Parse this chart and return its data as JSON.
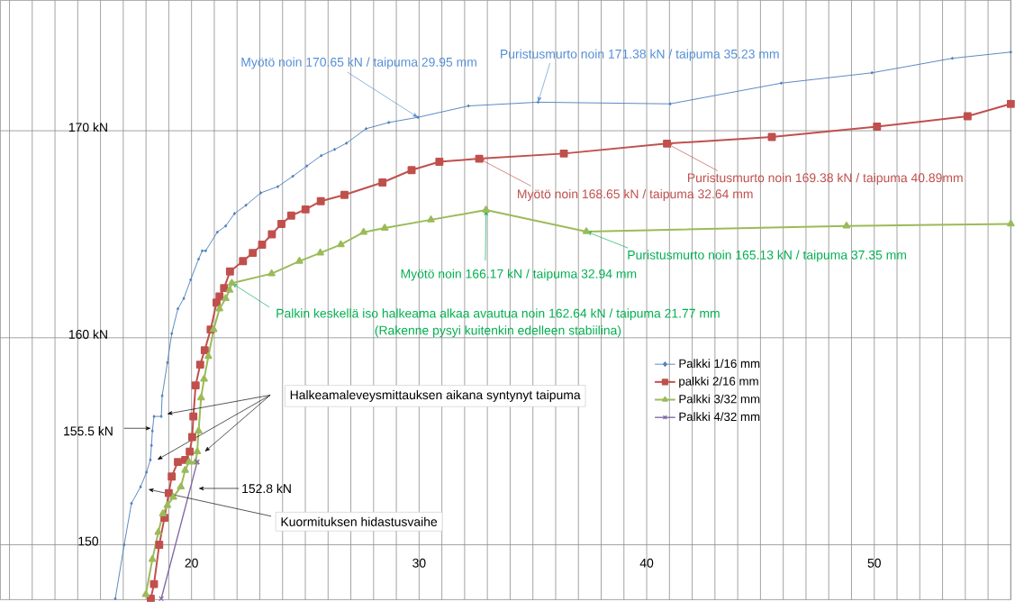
{
  "chart_data": {
    "type": "line",
    "xlim": [
      11.6,
      56.0
    ],
    "ylim": [
      147.35,
      176.3
    ],
    "xticks": [
      {
        "value": 12,
        "label": null
      },
      {
        "value": 13,
        "label": null
      },
      {
        "value": 14,
        "label": null
      },
      {
        "value": 15,
        "label": null
      },
      {
        "value": 16,
        "label": null
      },
      {
        "value": 17,
        "label": null
      },
      {
        "value": 18,
        "label": null
      },
      {
        "value": 19,
        "label": null
      },
      20,
      {
        "value": 21,
        "label": null
      },
      {
        "value": 22,
        "label": null
      },
      {
        "value": 23,
        "label": null
      },
      {
        "value": 24,
        "label": null
      },
      {
        "value": 25,
        "label": null
      },
      {
        "value": 26,
        "label": null
      },
      {
        "value": 27,
        "label": null
      },
      {
        "value": 28,
        "label": null
      },
      {
        "value": 29,
        "label": null
      },
      30,
      {
        "value": 31,
        "label": null
      },
      {
        "value": 32,
        "label": null
      },
      {
        "value": 33,
        "label": null
      },
      {
        "value": 34,
        "label": null
      },
      {
        "value": 35,
        "label": null
      },
      {
        "value": 36,
        "label": null
      },
      {
        "value": 37,
        "label": null
      },
      {
        "value": 38,
        "label": null
      },
      {
        "value": 39,
        "label": null
      },
      40,
      {
        "value": 41,
        "label": null
      },
      {
        "value": 42,
        "label": null
      },
      {
        "value": 43,
        "label": null
      },
      {
        "value": 44,
        "label": null
      },
      {
        "value": 45,
        "label": null
      },
      {
        "value": 46,
        "label": null
      },
      {
        "value": 47,
        "label": null
      },
      {
        "value": 48,
        "label": null
      },
      {
        "value": 49,
        "label": null
      },
      50,
      {
        "value": 51,
        "label": null
      },
      {
        "value": 52,
        "label": null
      },
      {
        "value": 53,
        "label": null
      },
      {
        "value": 54,
        "label": null
      },
      {
        "value": 55,
        "label": null
      },
      {
        "value": 56,
        "label": null
      }
    ],
    "yticks": [
      150,
      {
        "value": 155.5,
        "label": "155.5 kN"
      },
      {
        "value": 160,
        "label": "160 kN"
      },
      {
        "value": 170,
        "label": "170 kN"
      }
    ],
    "grid": true,
    "legend": "right",
    "series": [
      {
        "name": "Palkki 1/16 mm",
        "color": "#4f81bd",
        "marker": "diamond",
        "x": [
          16.65,
          17.04,
          17.36,
          17.76,
          18.02,
          18.19,
          18.24,
          18.28,
          18.35,
          18.67,
          18.71,
          18.94,
          19.13,
          19.4,
          19.66,
          19.96,
          20.31,
          20.47,
          20.62,
          21.13,
          21.5,
          21.89,
          22.39,
          23.04,
          23.79,
          24.45,
          25.07,
          25.7,
          26.29,
          26.81,
          27.67,
          28.67,
          29.95,
          32.17,
          35.23,
          41.03,
          45.91,
          49.9,
          53.43,
          56.0
        ],
        "values": [
          147.4,
          150.0,
          152.0,
          152.8,
          153.5,
          154.1,
          154.8,
          155.5,
          156.2,
          156.2,
          157.2,
          158.8,
          160.2,
          161.4,
          161.9,
          162.8,
          163.8,
          164.2,
          164.2,
          165.1,
          165.4,
          166.0,
          166.4,
          167.0,
          167.3,
          167.8,
          168.3,
          168.8,
          169.1,
          169.4,
          170.1,
          170.4,
          170.65,
          171.2,
          171.38,
          171.3,
          172.3,
          172.8,
          173.5,
          173.8
        ]
      },
      {
        "name": "palkki 2/16 mm",
        "color": "#c0504d",
        "marker": "square",
        "x": [
          18.21,
          18.35,
          18.58,
          18.81,
          19.0,
          19.13,
          19.4,
          19.72,
          19.92,
          20.03,
          20.08,
          20.18,
          20.38,
          20.58,
          20.84,
          21.1,
          21.23,
          21.43,
          21.69,
          22.26,
          22.69,
          23.1,
          23.53,
          23.95,
          24.38,
          25.01,
          25.68,
          26.72,
          28.39,
          29.67,
          30.89,
          32.64,
          36.36,
          40.89,
          45.5,
          50.12,
          54.1,
          56.0
        ],
        "values": [
          147.4,
          148.1,
          150.0,
          151.3,
          152.5,
          153.3,
          154.0,
          154.1,
          154.5,
          155.2,
          156.2,
          157.7,
          158.7,
          159.4,
          160.4,
          161.7,
          162.0,
          162.4,
          163.2,
          163.7,
          164.1,
          164.5,
          165.0,
          165.5,
          165.9,
          166.2,
          166.6,
          166.9,
          167.5,
          168.1,
          168.5,
          168.65,
          168.9,
          169.38,
          169.7,
          170.2,
          170.7,
          171.3
        ]
      },
      {
        "name": "Palkki 3/32 mm",
        "color": "#9bbb59",
        "marker": "triangle",
        "x": [
          17.99,
          18.28,
          18.54,
          18.74,
          18.94,
          19.2,
          19.53,
          19.72,
          19.89,
          20.18,
          20.25,
          20.31,
          20.42,
          20.55,
          20.74,
          20.97,
          21.23,
          21.5,
          21.67,
          21.77,
          23.52,
          24.74,
          25.66,
          26.56,
          27.56,
          28.49,
          30.52,
          32.94,
          37.35,
          48.78,
          56.0
        ],
        "values": [
          147.6,
          149.3,
          150.6,
          151.5,
          151.9,
          152.3,
          152.8,
          153.6,
          154.0,
          154.0,
          154.5,
          155.5,
          157.1,
          158.0,
          159.1,
          160.4,
          161.4,
          161.9,
          162.3,
          162.64,
          163.1,
          163.7,
          164.1,
          164.5,
          165.1,
          165.3,
          165.7,
          166.17,
          165.13,
          165.4,
          165.5
        ]
      },
      {
        "name": "Palkki 4/32 mm",
        "color": "#8064a2",
        "marker": "cross",
        "x": [
          18.67,
          20.25
        ],
        "values": [
          147.4,
          154.0
        ]
      }
    ],
    "annotations": [
      {
        "text": "Myötö noin 170.65 kN / taipuma 29.95 mm",
        "x": 29.95,
        "y": 170.65
      },
      {
        "text": "Puristusmurto noin 171.38 kN / taipuma 35.23 mm",
        "x": 35.23,
        "y": 171.38
      },
      {
        "text": "Myötö noin 168.65 kN / taipuma 32.64 mm",
        "x": 32.64,
        "y": 168.65
      },
      {
        "text": "Puristusmurto noin 169.38 kN / taipuma 40.89mm",
        "x": 40.89,
        "y": 169.38
      },
      {
        "text": "Myötö noin 166.17 kN / taipuma 32.94 mm",
        "x": 32.94,
        "y": 166.17
      },
      {
        "text": "Puristusmurto noin 165.13 kN / taipuma 37.35 mm",
        "x": 37.35,
        "y": 165.13
      },
      {
        "text": "Palkin keskellä iso halkeama alkaa avautua noin 162.64 kN / taipuma 21.77 mm",
        "x": 21.77,
        "y": 162.64
      },
      "(Rakenne pysyi kuitenkin edelleen stabiilina)",
      "152.8 kN",
      "Halkeamaleveysmittauksen aikana syntynyt taipuma",
      "Kuormituksen hidastusvaihe"
    ]
  }
}
